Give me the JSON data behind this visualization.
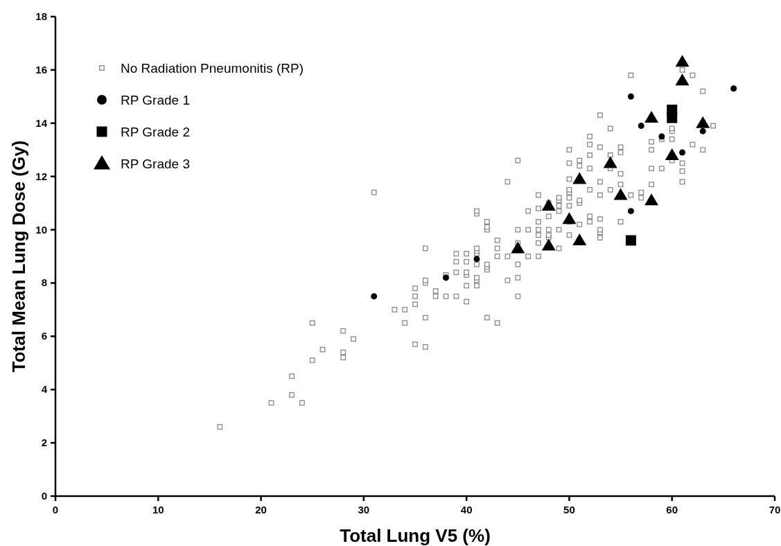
{
  "chart_data": {
    "type": "scatter",
    "xlabel": "Total Lung V5 (%)",
    "ylabel": "Total Mean Lung Dose (Gy)",
    "xlim": [
      0,
      70
    ],
    "ylim": [
      0,
      18
    ],
    "xticks": [
      0,
      10,
      20,
      30,
      40,
      50,
      60,
      70
    ],
    "yticks": [
      0,
      2,
      4,
      6,
      8,
      10,
      12,
      14,
      16,
      18
    ],
    "grid": false,
    "legend": "top left",
    "series": [
      {
        "name": "No Radiation Pneumonitis (RP)",
        "color": "#888888",
        "marker": "square",
        "x": [
          16,
          21,
          23,
          23,
          24,
          25,
          25,
          26,
          28,
          28,
          28,
          29,
          31,
          33,
          34,
          34,
          35,
          35,
          35,
          35,
          36,
          36,
          36,
          36,
          36,
          37,
          37,
          38,
          38,
          39,
          39,
          39,
          39,
          40,
          40,
          40,
          40,
          40,
          40,
          41,
          41,
          41,
          41,
          41,
          41,
          41,
          41,
          41,
          42,
          42,
          42,
          42,
          42,
          42,
          42,
          43,
          43,
          43,
          43,
          44,
          44,
          44,
          45,
          45,
          45,
          45,
          45,
          45,
          46,
          46,
          46,
          47,
          47,
          47,
          47,
          47,
          47,
          47,
          48,
          48,
          48,
          48,
          48,
          49,
          49,
          49,
          49,
          49,
          49,
          50,
          50,
          50,
          50,
          50,
          50,
          50,
          50,
          50,
          51,
          51,
          51,
          51,
          51,
          52,
          52,
          52,
          52,
          52,
          52,
          52,
          53,
          53,
          53,
          53,
          53,
          53,
          53,
          53,
          54,
          54,
          54,
          54,
          55,
          55,
          55,
          55,
          55,
          56,
          56,
          57,
          57,
          58,
          58,
          58,
          58,
          59,
          59,
          60,
          60,
          60,
          60,
          61,
          61,
          61,
          61,
          62,
          62,
          63,
          63,
          64
        ],
        "values": [
          2.6,
          3.5,
          3.8,
          4.5,
          3.5,
          5.1,
          6.5,
          5.5,
          5.2,
          5.4,
          6.2,
          5.9,
          11.4,
          7.0,
          6.5,
          7.0,
          5.7,
          7.2,
          7.5,
          7.8,
          5.6,
          6.7,
          8.0,
          8.1,
          9.3,
          7.5,
          7.7,
          7.5,
          8.3,
          7.5,
          8.4,
          8.8,
          9.1,
          7.3,
          7.9,
          8.3,
          8.4,
          8.8,
          9.1,
          7.9,
          8.1,
          8.2,
          8.7,
          9.1,
          9.2,
          9.3,
          10.6,
          10.7,
          6.7,
          8.5,
          8.6,
          8.7,
          10.0,
          10.1,
          10.3,
          6.5,
          9.0,
          9.3,
          9.6,
          8.1,
          9.0,
          11.8,
          7.5,
          8.2,
          8.7,
          9.5,
          10.0,
          12.6,
          9.0,
          10.0,
          10.7,
          9.0,
          9.5,
          9.8,
          10.0,
          10.3,
          10.8,
          11.3,
          9.7,
          9.8,
          10.0,
          10.5,
          11.0,
          9.3,
          10.0,
          10.7,
          10.9,
          11.1,
          11.2,
          9.8,
          10.3,
          10.9,
          11.2,
          11.4,
          11.5,
          11.9,
          12.5,
          13.0,
          10.2,
          11.0,
          11.1,
          12.4,
          12.6,
          10.3,
          10.5,
          11.5,
          12.3,
          12.8,
          13.2,
          13.5,
          9.7,
          9.9,
          10.0,
          10.4,
          11.3,
          11.8,
          13.1,
          14.3,
          11.5,
          12.3,
          12.8,
          13.8,
          10.3,
          11.7,
          12.1,
          12.9,
          13.1,
          15.8,
          11.3,
          11.2,
          11.4,
          11.7,
          12.3,
          13.0,
          13.3,
          12.3,
          13.4,
          12.6,
          13.4,
          13.7,
          13.8,
          11.8,
          12.2,
          12.5,
          16.0,
          13.2,
          15.8,
          13.0,
          15.2,
          13.9
        ]
      },
      {
        "name": "RP Grade 1",
        "color": "#000000",
        "marker": "circle",
        "x": [
          31,
          38,
          41,
          56,
          56,
          57,
          59,
          61,
          63,
          66
        ],
        "values": [
          7.5,
          8.2,
          8.9,
          10.7,
          15.0,
          13.9,
          13.5,
          12.9,
          13.7,
          15.3
        ]
      },
      {
        "name": "RP Grade 2",
        "color": "#000000",
        "marker": "square",
        "x": [
          56,
          60,
          60
        ],
        "values": [
          9.6,
          14.2,
          14.5
        ]
      },
      {
        "name": "RP Grade 3",
        "color": "#000000",
        "marker": "triangle",
        "x": [
          45,
          48,
          48,
          50,
          51,
          51,
          54,
          55,
          58,
          58,
          60,
          61,
          61,
          63
        ],
        "values": [
          9.3,
          9.4,
          10.9,
          10.4,
          9.6,
          11.9,
          12.5,
          11.3,
          11.1,
          14.2,
          12.8,
          15.6,
          16.3,
          14.0
        ]
      }
    ]
  }
}
